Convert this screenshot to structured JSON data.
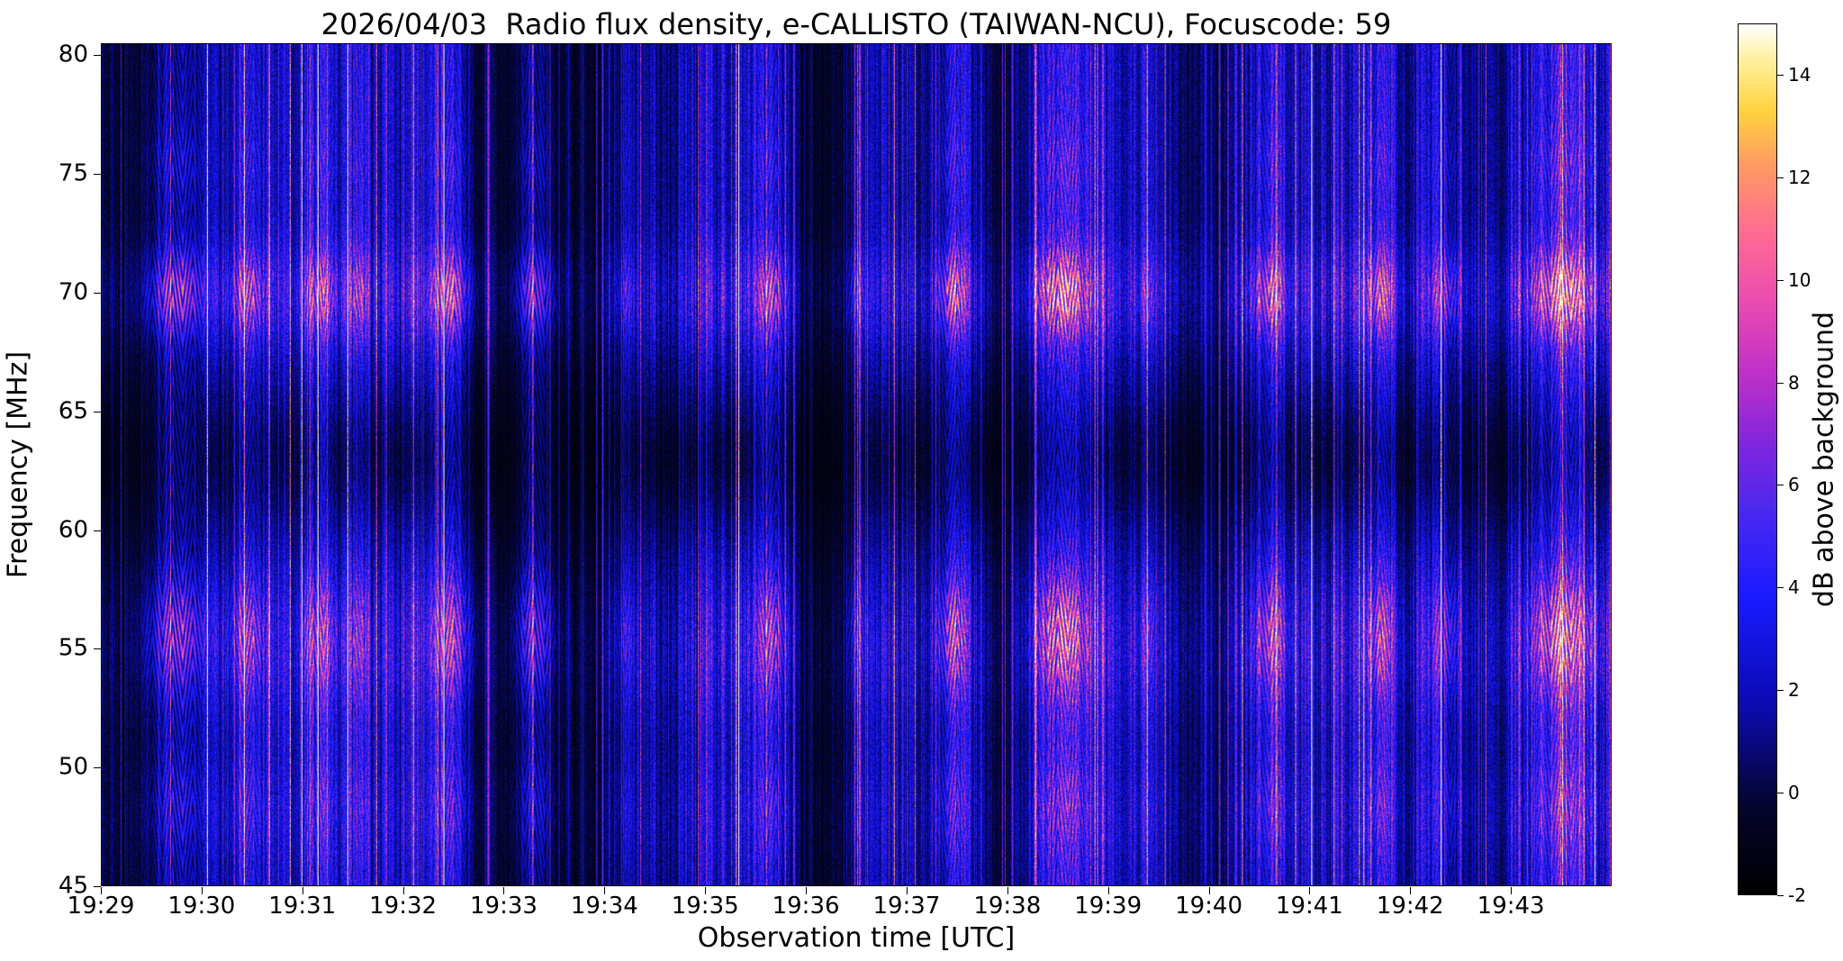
{
  "chart_data": {
    "type": "heatmap",
    "title": "2026/04/03  Radio flux density, e-CALLISTO (TAIWAN-NCU), Focuscode: 59",
    "date": "2026/04/03",
    "station": "e-CALLISTO (TAIWAN-NCU)",
    "focuscode": "59",
    "xlabel": "Observation time [UTC]",
    "ylabel": "Frequency [MHz]",
    "x_ticks": [
      "19:29",
      "19:30",
      "19:31",
      "19:32",
      "19:33",
      "19:34",
      "19:35",
      "19:36",
      "19:37",
      "19:38",
      "19:39",
      "19:40",
      "19:41",
      "19:42",
      "19:43"
    ],
    "x_end_minutes": 15,
    "y_ticks": [
      80,
      75,
      70,
      65,
      60,
      55,
      50,
      45
    ],
    "y_range": [
      45,
      80.5
    ],
    "grid": false,
    "legend": null,
    "colorbar": {
      "label": "dB above background",
      "ticks": [
        14,
        12,
        10,
        8,
        6,
        4,
        2,
        0,
        -2
      ],
      "range": [
        -2,
        15
      ],
      "colormap": "gnuplot2",
      "stops": [
        [
          0.0,
          "#000000"
        ],
        [
          0.1,
          "#05052d"
        ],
        [
          0.22,
          "#0b0bb4"
        ],
        [
          0.34,
          "#1a1aff"
        ],
        [
          0.44,
          "#4b28f0"
        ],
        [
          0.52,
          "#8226dc"
        ],
        [
          0.6,
          "#c030c8"
        ],
        [
          0.68,
          "#e94bb0"
        ],
        [
          0.76,
          "#ff6b94"
        ],
        [
          0.84,
          "#ff9b62"
        ],
        [
          0.9,
          "#ffd23c"
        ],
        [
          0.96,
          "#fff0a0"
        ],
        [
          1.0,
          "#ffffff"
        ]
      ]
    },
    "features": {
      "seed": 59,
      "background_character": "dense vertical RFI striping, dark blue over black",
      "enhanced_bands_mhz": [
        70,
        55.5,
        48
      ],
      "quiet_band_mhz": [
        58,
        67
      ],
      "burst_events": [
        {
          "t": 0.75,
          "w": 0.55,
          "a": 1.0
        },
        {
          "t": 1.45,
          "w": 0.35,
          "a": 0.75
        },
        {
          "t": 2.15,
          "w": 0.35,
          "a": 0.7
        },
        {
          "t": 2.55,
          "w": 0.2,
          "a": 0.5
        },
        {
          "t": 3.45,
          "w": 0.4,
          "a": 0.85
        },
        {
          "t": 4.3,
          "w": 0.35,
          "a": 0.85
        },
        {
          "t": 5.2,
          "w": 0.2,
          "a": 0.35
        },
        {
          "t": 6.65,
          "w": 0.3,
          "a": 0.8
        },
        {
          "t": 7.5,
          "w": 0.2,
          "a": 0.4
        },
        {
          "t": 8.45,
          "w": 0.3,
          "a": 0.95
        },
        {
          "t": 9.55,
          "w": 0.55,
          "a": 1.0
        },
        {
          "t": 10.4,
          "w": 0.2,
          "a": 0.35
        },
        {
          "t": 11.6,
          "w": 0.35,
          "a": 0.8
        },
        {
          "t": 12.7,
          "w": 0.3,
          "a": 0.75
        },
        {
          "t": 13.35,
          "w": 0.3,
          "a": 0.6
        },
        {
          "t": 14.5,
          "w": 0.65,
          "a": 1.0
        }
      ]
    }
  }
}
